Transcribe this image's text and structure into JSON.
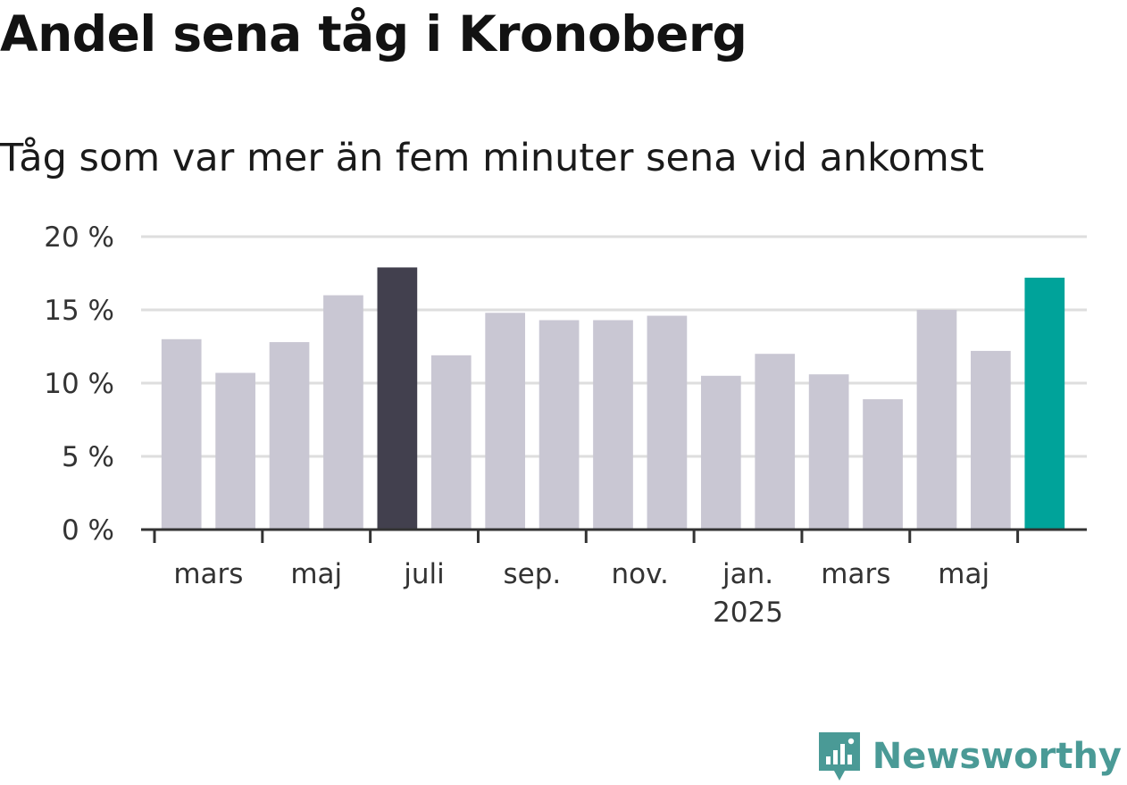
{
  "title": "Andel sena tåg i Kronoberg",
  "subtitle": "Tåg som var mer än fem minuter sena vid ankomst",
  "brand": {
    "name": "Newsworthy",
    "icon": "newsworthy-logo-icon",
    "color": "#4a9a96"
  },
  "colors": {
    "bar": "#c9c7d3",
    "bar_highlight": "#42404e",
    "bar_latest": "#00a39a",
    "grid": "#dedede",
    "axis": "#333333"
  },
  "chart_data": {
    "type": "bar",
    "title": "Andel sena tåg i Kronoberg",
    "subtitle": "Tåg som var mer än fem minuter sena vid ankomst",
    "xlabel": "",
    "ylabel": "",
    "categories": [
      "2024-02",
      "2024-03",
      "2024-04",
      "2024-05",
      "2024-06",
      "2024-07",
      "2024-08",
      "2024-09",
      "2024-10",
      "2024-11",
      "2024-12",
      "2025-01",
      "2025-02",
      "2025-03",
      "2025-04",
      "2025-05",
      "2025-06"
    ],
    "values": [
      13.0,
      10.7,
      12.8,
      16.0,
      17.9,
      11.9,
      14.8,
      14.3,
      14.3,
      14.6,
      10.5,
      12.0,
      10.6,
      8.9,
      15.0,
      12.2,
      17.2
    ],
    "highlight": {
      "2024-06": "bar_highlight",
      "2025-06": "bar_latest"
    },
    "ylim": [
      0,
      20
    ],
    "y_ticks": [
      {
        "value": 0,
        "label": "0 %"
      },
      {
        "value": 5,
        "label": "5 %"
      },
      {
        "value": 10,
        "label": "10 %"
      },
      {
        "value": 15,
        "label": "15 %"
      },
      {
        "value": 20,
        "label": "20 %"
      }
    ],
    "x_tick_labels": [
      {
        "at": "2024-03",
        "label": "mars",
        "sublabel": ""
      },
      {
        "at": "2024-05",
        "label": "maj",
        "sublabel": ""
      },
      {
        "at": "2024-07",
        "label": "juli",
        "sublabel": ""
      },
      {
        "at": "2024-09",
        "label": "sep.",
        "sublabel": ""
      },
      {
        "at": "2024-11",
        "label": "nov.",
        "sublabel": ""
      },
      {
        "at": "2025-01",
        "label": "jan.",
        "sublabel": "2025"
      },
      {
        "at": "2025-03",
        "label": "mars",
        "sublabel": ""
      },
      {
        "at": "2025-05",
        "label": "maj",
        "sublabel": ""
      }
    ],
    "grid": true,
    "legend": "none"
  }
}
